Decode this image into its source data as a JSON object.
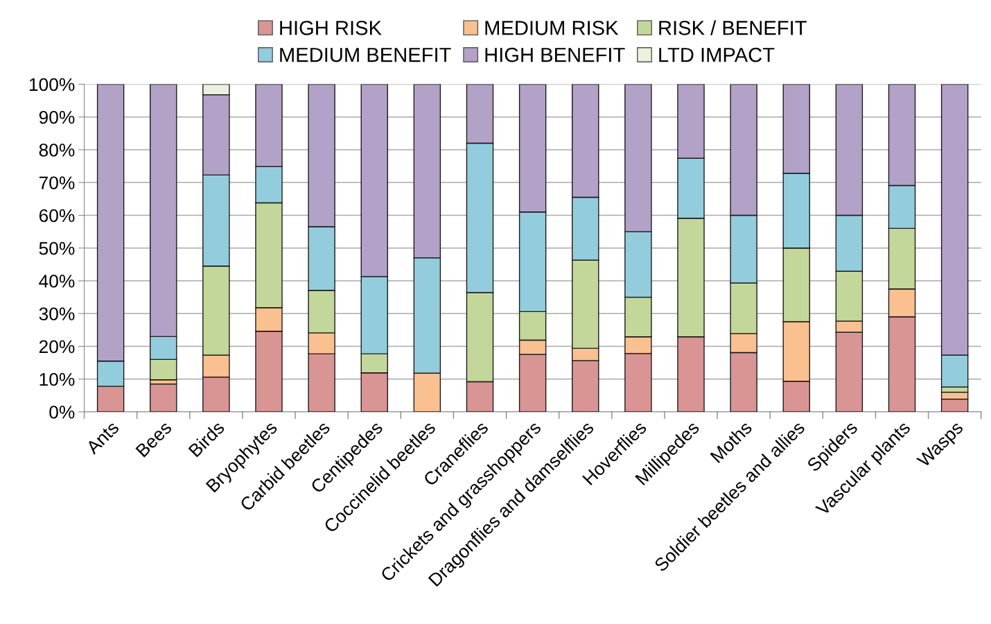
{
  "chart_data": {
    "type": "bar",
    "stacked": true,
    "categories": [
      "Ants",
      "Bees",
      "Birds",
      "Bryophytes",
      "Carbid beetles",
      "Centipedes",
      "Coccinelid beetles",
      "Craneflies",
      "Crickets and grasshoppers",
      "Dragonflies and damselflies",
      "Hoverflies",
      "Millipedes",
      "Moths",
      "Soldier beetles and allies",
      "Spiders",
      "Vascular plants",
      "Wasps"
    ],
    "series": [
      {
        "name": "HIGH RISK",
        "color": "#d99594",
        "values": [
          7.8,
          8.5,
          10.6,
          24.6,
          17.7,
          11.9,
          null,
          9.2,
          17.5,
          15.6,
          17.8,
          22.9,
          18.1,
          9.3,
          24.3,
          29,
          3.9
        ]
      },
      {
        "name": "MEDIUM RISK",
        "color": "#fac090",
        "values": [
          null,
          1.3,
          6.7,
          7.2,
          6.4,
          null,
          11.8,
          null,
          4.4,
          3.8,
          5.1,
          null,
          5.8,
          18.2,
          3.4,
          8.5,
          2.1
        ]
      },
      {
        "name": "RISK / BENEFIT",
        "color": "#c4d79b",
        "values": [
          null,
          6.2,
          27.2,
          32,
          13,
          5.8,
          null,
          27.2,
          8.7,
          26.9,
          12.1,
          36.2,
          15.4,
          22.5,
          15.2,
          18.5,
          1.6
        ]
      },
      {
        "name": "MEDIUM BENEFIT",
        "color": "#93cddd",
        "values": [
          7.7,
          7,
          27.8,
          11.1,
          19.4,
          23.6,
          35.2,
          45.6,
          30.4,
          19.2,
          20,
          18.3,
          20.7,
          22.8,
          17.1,
          13.1,
          9.7
        ]
      },
      {
        "name": "HIGH BENEFIT",
        "color": "#b3a2c7",
        "values": [
          84.5,
          77,
          24.5,
          25.1,
          43.5,
          58.7,
          53,
          18,
          39,
          34.5,
          45,
          22.6,
          40,
          27.2,
          40,
          30.9,
          82.7
        ]
      },
      {
        "name": "LTD IMPACT",
        "color": "#ebf1de",
        "values": [
          null,
          null,
          3.2,
          null,
          null,
          null,
          null,
          null,
          null,
          null,
          null,
          null,
          null,
          null,
          null,
          null,
          null
        ]
      }
    ],
    "ylim": [
      0,
      100
    ],
    "yticks": [
      {
        "value": 0,
        "label": "0%"
      },
      {
        "value": 10,
        "label": "10%"
      },
      {
        "value": 20,
        "label": "20%"
      },
      {
        "value": 30,
        "label": "30%"
      },
      {
        "value": 40,
        "label": "40%"
      },
      {
        "value": 50,
        "label": "50%"
      },
      {
        "value": 60,
        "label": "60%"
      },
      {
        "value": 70,
        "label": "70%"
      },
      {
        "value": 80,
        "label": "80%"
      },
      {
        "value": 90,
        "label": "90%"
      },
      {
        "value": 100,
        "label": "100%"
      }
    ],
    "grid": "y",
    "legend": "top"
  }
}
